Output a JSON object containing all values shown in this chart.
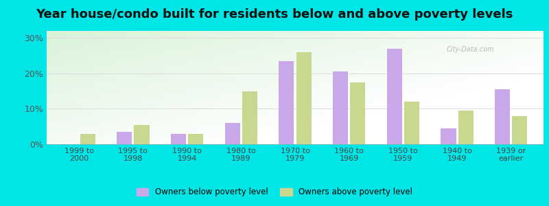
{
  "title": "Year house/condo built for residents below and above poverty levels",
  "categories": [
    "1999 to\n2000",
    "1995 to\n1998",
    "1990 to\n1994",
    "1980 to\n1989",
    "1970 to\n1979",
    "1960 to\n1969",
    "1950 to\n1959",
    "1940 to\n1949",
    "1939 or\nearlier"
  ],
  "below_poverty": [
    0,
    3.5,
    3.0,
    6.0,
    23.5,
    20.5,
    27.0,
    4.5,
    15.5
  ],
  "above_poverty": [
    3.0,
    5.5,
    3.0,
    15.0,
    26.0,
    17.5,
    12.0,
    9.5,
    8.0
  ],
  "below_color": "#c8a8e8",
  "above_color": "#c8d890",
  "yticks": [
    0,
    10,
    20,
    30
  ],
  "ylim": [
    0,
    32
  ],
  "outer_background": "#00e5e5",
  "grid_color": "#dddddd",
  "title_fontsize": 13,
  "legend_below_label": "Owners below poverty level",
  "legend_above_label": "Owners above poverty level",
  "bar_width": 0.28
}
